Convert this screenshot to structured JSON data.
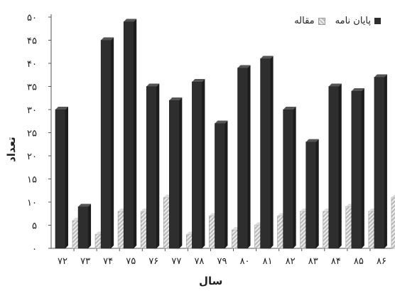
{
  "chart_data": {
    "type": "bar",
    "categories": [
      "۷۲",
      "۷۳",
      "۷۴",
      "۷۵",
      "۷۶",
      "۷۷",
      "۷۸",
      "۷۹",
      "۸۰",
      "۸۱",
      "۸۲",
      "۸۳",
      "۸۴",
      "۸۵",
      "۸۶"
    ],
    "series": [
      {
        "name": "پایان نامه",
        "values": [
          30,
          9,
          45,
          49,
          35,
          32,
          36,
          27,
          39,
          41,
          30,
          23,
          35,
          34,
          37
        ],
        "color": "#2e2e2e"
      },
      {
        "name": "مقاله",
        "values": [
          6,
          3,
          8,
          8,
          11,
          3,
          7,
          4,
          5,
          7,
          8,
          8,
          9,
          8,
          11
        ],
        "color": "#c8c8c8"
      }
    ],
    "ylim": [
      0,
      50
    ],
    "yticks": [
      "۰",
      "۵",
      "۱۰",
      "۱۵",
      "۲۰",
      "۲۵",
      "۳۰",
      "۳۵",
      "۴۰",
      "۴۵",
      "۵۰"
    ],
    "xlabel": "سال",
    "ylabel": "تعداد",
    "legend_position": "top-right",
    "grid": false
  }
}
